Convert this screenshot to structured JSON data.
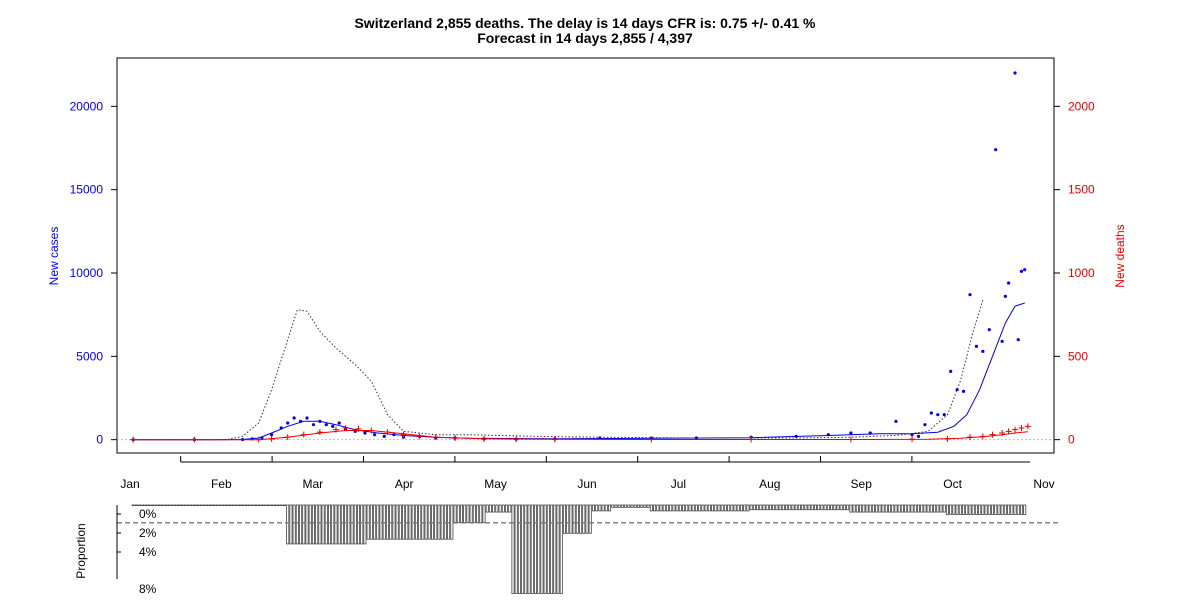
{
  "colors": {
    "cases": "#0000ee",
    "deaths": "#ee0000",
    "projection": "#333333",
    "bars": "#444444",
    "ref_line": "#777777"
  },
  "chart_data": [
    {
      "type": "line",
      "title_line1": "Switzerland 2,855 deaths. The delay is 14 days CFR is: 0.75 +/- 0.41 %",
      "title_line2": "Forecast in 14 days 2,855 / 4,397",
      "x_axis": {
        "range": [
          "2020-01-21",
          "2020-10-31"
        ],
        "tick_labels": [
          "Jan",
          "Feb",
          "Mar",
          "Apr",
          "May",
          "Jun",
          "Jul",
          "Aug",
          "Sep",
          "Oct",
          "Nov"
        ]
      },
      "y_left": {
        "label": "New cases",
        "range": [
          -800,
          22900
        ],
        "ticks": [
          0,
          5000,
          10000,
          15000,
          20000
        ]
      },
      "y_right": {
        "label": "New deaths",
        "range": [
          -80,
          2290
        ],
        "ticks": [
          0,
          500,
          1000,
          1500,
          2000
        ]
      },
      "series": [
        {
          "name": "",
          "role": "daily new cases (points)",
          "axis": "left",
          "style": "points",
          "x": [
            "2020-01-22",
            "2020-02-10",
            "2020-02-25",
            "2020-02-28",
            "2020-03-02",
            "2020-03-05",
            "2020-03-08",
            "2020-03-10",
            "2020-03-12",
            "2020-03-14",
            "2020-03-16",
            "2020-03-18",
            "2020-03-20",
            "2020-03-22",
            "2020-03-24",
            "2020-03-26",
            "2020-03-28",
            "2020-03-31",
            "2020-04-03",
            "2020-04-06",
            "2020-04-09",
            "2020-04-12",
            "2020-04-15",
            "2020-04-20",
            "2020-04-25",
            "2020-05-01",
            "2020-05-10",
            "2020-05-20",
            "2020-06-01",
            "2020-06-15",
            "2020-07-01",
            "2020-07-15",
            "2020-08-01",
            "2020-08-15",
            "2020-08-25",
            "2020-09-01",
            "2020-09-07",
            "2020-09-15",
            "2020-09-20",
            "2020-09-22",
            "2020-09-24",
            "2020-09-26",
            "2020-09-28",
            "2020-09-30",
            "2020-10-02",
            "2020-10-04",
            "2020-10-06",
            "2020-10-08",
            "2020-10-10",
            "2020-10-12",
            "2020-10-14",
            "2020-10-16",
            "2020-10-18",
            "2020-10-19",
            "2020-10-20",
            "2020-10-22",
            "2020-10-23",
            "2020-10-24",
            "2020-10-25"
          ],
          "values": [
            0,
            0,
            10,
            50,
            100,
            300,
            700,
            1000,
            1300,
            1100,
            1300,
            900,
            1100,
            900,
            800,
            1000,
            600,
            500,
            400,
            300,
            200,
            300,
            150,
            200,
            100,
            100,
            50,
            30,
            50,
            100,
            100,
            100,
            150,
            200,
            300,
            400,
            400,
            1100,
            300,
            200,
            900,
            1600,
            1500,
            1500,
            4100,
            3000,
            2900,
            8700,
            5600,
            5300,
            6600,
            17400,
            5900,
            8600,
            9400,
            22000,
            6000,
            10100,
            10200
          ]
        },
        {
          "name": "",
          "role": "smoothed new cases",
          "axis": "left",
          "style": "line",
          "x": [
            "2020-01-22",
            "2020-02-15",
            "2020-02-25",
            "2020-03-01",
            "2020-03-05",
            "2020-03-10",
            "2020-03-15",
            "2020-03-20",
            "2020-03-25",
            "2020-03-31",
            "2020-04-07",
            "2020-04-15",
            "2020-04-25",
            "2020-05-05",
            "2020-06-01",
            "2020-07-01",
            "2020-08-01",
            "2020-08-25",
            "2020-09-10",
            "2020-09-20",
            "2020-09-28",
            "2020-10-03",
            "2020-10-07",
            "2020-10-11",
            "2020-10-15",
            "2020-10-19",
            "2020-10-22",
            "2020-10-25"
          ],
          "values": [
            0,
            0,
            10,
            100,
            400,
            800,
            1100,
            1100,
            900,
            600,
            400,
            250,
            150,
            80,
            50,
            80,
            120,
            250,
            350,
            350,
            450,
            800,
            1500,
            3000,
            5000,
            7000,
            8000,
            8200
          ]
        },
        {
          "name": "",
          "role": "projection (dotted)",
          "axis": "left",
          "style": "dotted",
          "x": [
            "2020-01-22",
            "2020-02-20",
            "2020-02-25",
            "2020-03-01",
            "2020-03-05",
            "2020-03-10",
            "2020-03-13",
            "2020-03-16",
            "2020-03-20",
            "2020-03-25",
            "2020-03-31",
            "2020-04-05",
            "2020-04-10",
            "2020-04-15",
            "2020-04-25",
            "2020-05-05",
            "2020-05-25",
            "2020-06-15",
            "2020-07-15",
            "2020-08-15",
            "2020-09-01",
            "2020-09-15",
            "2020-09-25",
            "2020-10-01",
            "2020-10-05",
            "2020-10-09",
            "2020-10-12"
          ],
          "values": [
            0,
            0,
            200,
            1000,
            3000,
            6000,
            7800,
            7700,
            6500,
            5500,
            4500,
            3500,
            1500,
            500,
            300,
            300,
            200,
            150,
            100,
            100,
            150,
            250,
            500,
            1500,
            3500,
            6500,
            8400
          ]
        },
        {
          "name": "",
          "role": "daily new deaths (points)",
          "axis": "right",
          "style": "plus",
          "x": [
            "2020-01-22",
            "2020-02-10",
            "2020-03-01",
            "2020-03-05",
            "2020-03-10",
            "2020-03-15",
            "2020-03-20",
            "2020-03-25",
            "2020-03-28",
            "2020-04-01",
            "2020-04-05",
            "2020-04-10",
            "2020-04-15",
            "2020-04-20",
            "2020-04-25",
            "2020-05-01",
            "2020-05-10",
            "2020-05-20",
            "2020-06-01",
            "2020-07-01",
            "2020-08-01",
            "2020-09-01",
            "2020-09-20",
            "2020-10-01",
            "2020-10-08",
            "2020-10-12",
            "2020-10-15",
            "2020-10-18",
            "2020-10-20",
            "2020-10-22",
            "2020-10-24",
            "2020-10-26"
          ],
          "values": [
            0,
            0,
            0,
            5,
            15,
            30,
            45,
            60,
            70,
            65,
            55,
            45,
            30,
            20,
            15,
            10,
            5,
            3,
            2,
            1,
            1,
            1,
            3,
            5,
            15,
            20,
            30,
            40,
            50,
            60,
            70,
            80
          ]
        },
        {
          "name": "",
          "role": "smoothed new deaths",
          "axis": "right",
          "style": "line",
          "x": [
            "2020-01-22",
            "2020-03-01",
            "2020-03-10",
            "2020-03-20",
            "2020-03-28",
            "2020-04-05",
            "2020-04-15",
            "2020-04-25",
            "2020-05-10",
            "2020-06-01",
            "2020-07-01",
            "2020-08-01",
            "2020-09-01",
            "2020-09-25",
            "2020-10-05",
            "2020-10-12",
            "2020-10-18",
            "2020-10-22",
            "2020-10-26"
          ],
          "values": [
            0,
            0,
            15,
            40,
            55,
            55,
            35,
            15,
            5,
            2,
            1,
            1,
            1,
            3,
            8,
            18,
            30,
            40,
            48
          ]
        }
      ]
    },
    {
      "type": "bar",
      "ylabel": "Proportion",
      "y_tick_labels": [
        "0%",
        "2%",
        "4%",
        "8%"
      ],
      "y_range": [
        0,
        8
      ],
      "reference_line": 1,
      "segments": [
        {
          "from": "2020-01-22",
          "to": "2020-03-09",
          "value": 0
        },
        {
          "from": "2020-03-10",
          "to": "2020-04-03",
          "value": 3.3
        },
        {
          "from": "2020-04-04",
          "to": "2020-04-30",
          "value": 2.9
        },
        {
          "from": "2020-05-01",
          "to": "2020-05-10",
          "value": 1.5
        },
        {
          "from": "2020-05-11",
          "to": "2020-05-18",
          "value": 0.6
        },
        {
          "from": "2020-05-19",
          "to": "2020-06-03",
          "value": 7.5
        },
        {
          "from": "2020-06-04",
          "to": "2020-06-12",
          "value": 2.4
        },
        {
          "from": "2020-06-13",
          "to": "2020-06-18",
          "value": 0.5
        },
        {
          "from": "2020-06-19",
          "to": "2020-06-30",
          "value": 0.2
        },
        {
          "from": "2020-07-01",
          "to": "2020-07-31",
          "value": 0.5
        },
        {
          "from": "2020-08-01",
          "to": "2020-08-31",
          "value": 0.4
        },
        {
          "from": "2020-09-01",
          "to": "2020-09-30",
          "value": 0.6
        },
        {
          "from": "2020-10-01",
          "to": "2020-10-25",
          "value": 0.8
        }
      ]
    }
  ]
}
